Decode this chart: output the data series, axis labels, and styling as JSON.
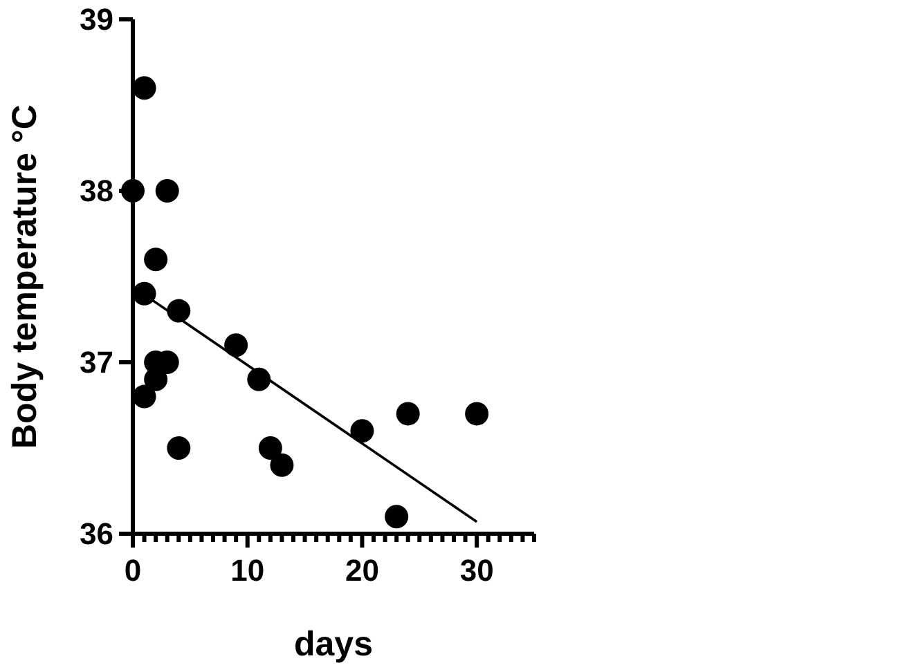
{
  "chart_data": {
    "type": "scatter",
    "xlabel": "days",
    "ylabel": "Body temperature °C",
    "xlim": [
      0,
      35
    ],
    "ylim": [
      36,
      39
    ],
    "xticks": [
      0,
      {
        "value": 1,
        "label": null
      },
      {
        "value": 2,
        "label": null
      },
      {
        "value": 3,
        "label": null
      },
      {
        "value": 4,
        "label": null
      },
      {
        "value": 5,
        "label": null
      },
      {
        "value": 6,
        "label": null
      },
      {
        "value": 7,
        "label": null
      },
      {
        "value": 8,
        "label": null
      },
      {
        "value": 9,
        "label": null
      },
      10,
      {
        "value": 11,
        "label": null
      },
      {
        "value": 12,
        "label": null
      },
      {
        "value": 13,
        "label": null
      },
      {
        "value": 14,
        "label": null
      },
      {
        "value": 15,
        "label": null
      },
      {
        "value": 16,
        "label": null
      },
      {
        "value": 17,
        "label": null
      },
      {
        "value": 18,
        "label": null
      },
      {
        "value": 19,
        "label": null
      },
      20,
      {
        "value": 21,
        "label": null
      },
      {
        "value": 22,
        "label": null
      },
      {
        "value": 23,
        "label": null
      },
      {
        "value": 24,
        "label": null
      },
      {
        "value": 25,
        "label": null
      },
      {
        "value": 26,
        "label": null
      },
      {
        "value": 27,
        "label": null
      },
      {
        "value": 28,
        "label": null
      },
      {
        "value": 29,
        "label": null
      },
      30,
      {
        "value": 31,
        "label": null
      },
      {
        "value": 32,
        "label": null
      },
      {
        "value": 33,
        "label": null
      },
      {
        "value": 34,
        "label": null
      },
      {
        "value": 35,
        "label": null
      }
    ],
    "yticks": [
      36,
      37,
      38,
      39
    ],
    "grid": false,
    "marker": "circle",
    "series": [
      {
        "color": "#000000",
        "x": [
          0,
          1,
          1,
          1,
          2,
          2,
          2,
          3,
          3,
          4,
          4,
          9,
          11,
          12,
          13,
          20,
          23,
          24,
          30
        ],
        "values": [
          38.0,
          38.6,
          37.4,
          36.8,
          37.6,
          37.0,
          36.9,
          38.0,
          37.0,
          37.3,
          36.5,
          37.1,
          36.9,
          36.5,
          36.4,
          36.6,
          36.1,
          36.7,
          36.7
        ]
      },
      {
        "type": "line",
        "color": "#000000",
        "marker": "none",
        "line_style": "solid",
        "x": [
          0,
          30
        ],
        "values": [
          37.44,
          36.07
        ]
      }
    ]
  }
}
